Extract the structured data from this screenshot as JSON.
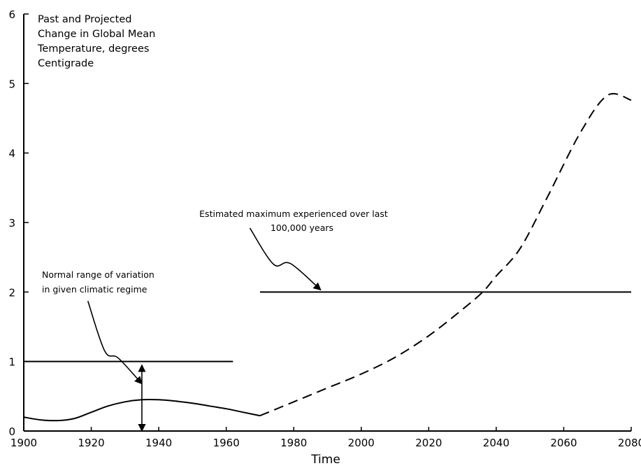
{
  "chart_data": {
    "type": "line",
    "title": [
      "Past and Projected",
      "Change in Global Mean",
      "Temperature, degrees",
      "Centigrade"
    ],
    "xlabel": "Time",
    "ylabel": "",
    "xlim": [
      1900,
      2080
    ],
    "ylim": [
      0,
      6
    ],
    "x_ticks": [
      1900,
      1920,
      1940,
      1960,
      1980,
      2000,
      2020,
      2040,
      2060,
      2080
    ],
    "y_ticks": [
      0,
      1,
      2,
      3,
      4,
      5,
      6
    ],
    "grid": false,
    "series": [
      {
        "style": "solid",
        "x": [
          1900,
          1905,
          1910,
          1915,
          1920,
          1925,
          1930,
          1935,
          1940,
          1945,
          1950,
          1955,
          1960,
          1965,
          1970
        ],
        "y": [
          0.2,
          0.16,
          0.15,
          0.18,
          0.27,
          0.36,
          0.42,
          0.45,
          0.45,
          0.43,
          0.4,
          0.36,
          0.32,
          0.27,
          0.22
        ]
      },
      {
        "style": "dashed",
        "x": [
          1970,
          1980,
          1990,
          2000,
          2010,
          2020,
          2030,
          2036,
          2040,
          2047,
          2055,
          2065,
          2073,
          2080
        ],
        "y": [
          0.22,
          0.42,
          0.62,
          0.82,
          1.06,
          1.37,
          1.75,
          2.0,
          2.23,
          2.62,
          3.35,
          4.3,
          4.83,
          4.76
        ]
      }
    ],
    "reference_lines": [
      {
        "y": 1,
        "x_start": 1900,
        "x_end": 1962
      },
      {
        "y": 2,
        "x_start": 1970,
        "x_end": 2080
      }
    ],
    "annotations": [
      {
        "lines": [
          "Normal range of variation",
          "in given climatic regime"
        ],
        "pointer": [
          [
            1919,
            1.87
          ],
          [
            1924,
            1.15
          ],
          [
            1928,
            1.05
          ],
          [
            1935,
            0.68
          ]
        ],
        "range_arrow": {
          "x": 1935,
          "y_from": 0,
          "y_to": 0.95
        }
      },
      {
        "lines": [
          "Estimated maximum experienced over last",
          "100,000 years"
        ],
        "pointer": [
          [
            1967,
            2.92
          ],
          [
            1974,
            2.4
          ],
          [
            1979,
            2.41
          ],
          [
            1988,
            2.03
          ]
        ]
      }
    ]
  }
}
